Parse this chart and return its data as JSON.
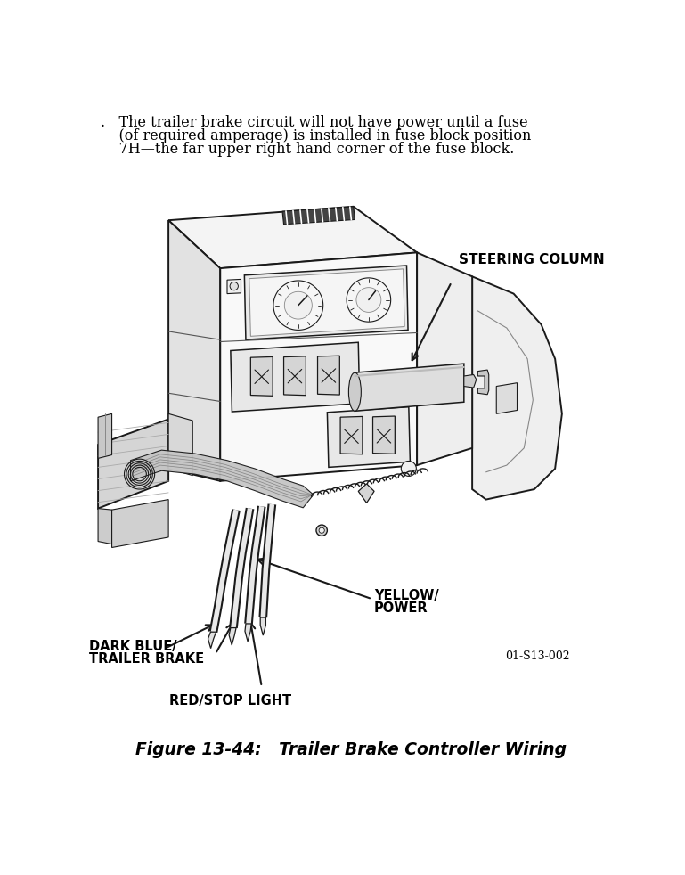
{
  "bg_color": "#ffffff",
  "text_color": "#000000",
  "lc": "#1a1a1a",
  "header_lines": [
    ".   The trailer brake circuit will not have power until a fuse",
    "    (of required amperage) is installed in fuse block position",
    "    7H—the far upper right hand corner of the fuse block."
  ],
  "label_steering": "STEERING COLUMN",
  "label_yellow_1": "YELLOW/",
  "label_yellow_2": "POWER",
  "label_blue_1": "DARK BLUE/",
  "label_blue_2": "TRAILER BRAKE",
  "label_red": "RED/STOP LIGHT",
  "part_number": "01-S13-002",
  "fig_title": "Figure 13-44:   Trailer Brake Controller Wiring",
  "header_fontsize": 11.5,
  "label_fontsize": 10.5,
  "title_fontsize": 13.5,
  "partnum_fontsize": 9
}
